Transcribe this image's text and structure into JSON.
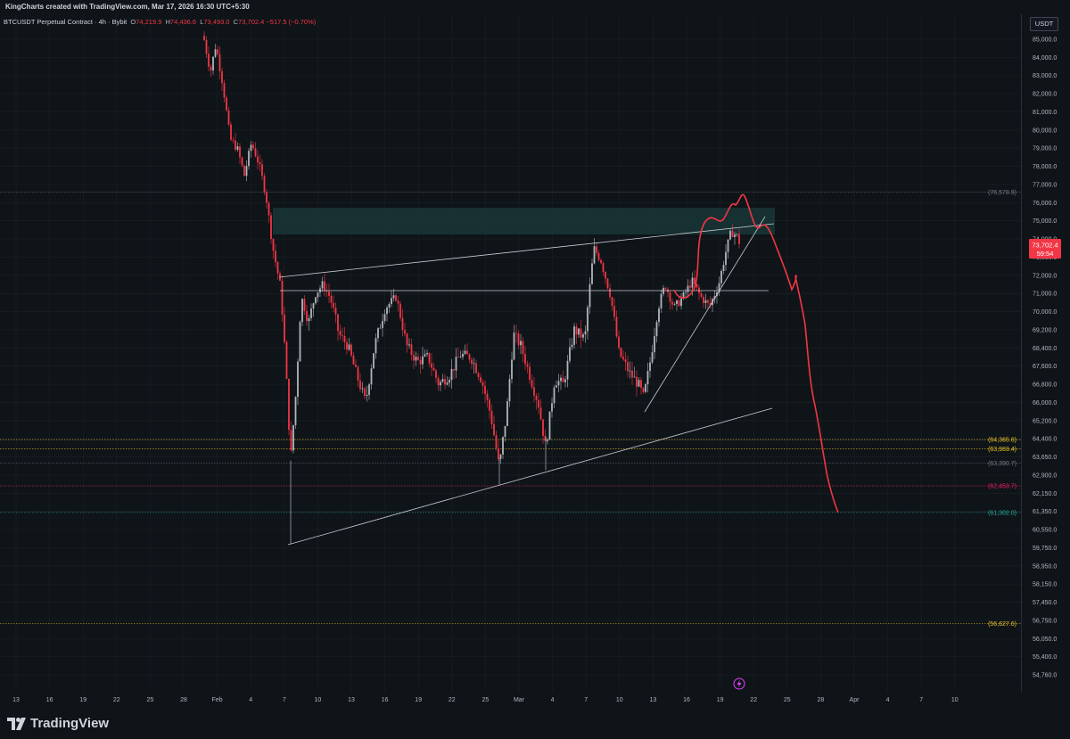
{
  "header": {
    "credit": "KingCharts created with TradingView.com, Mar 17, 2026 16:30 UTC+5:30"
  },
  "legend": {
    "symbol": "BTCUSDT Perpetual Contract · 4h · Bybit",
    "o_label": "O",
    "o": "74,219.9",
    "h_label": "H",
    "h": "74,436.6",
    "l_label": "L",
    "l": "73,493.0",
    "c_label": "C",
    "c": "73,702.4",
    "change": "−517.5 (−0.70%)"
  },
  "currency": "USDT",
  "price_axis": {
    "ticks": [
      "85,000.0",
      "84,000.0",
      "83,000.0",
      "82,000.0",
      "81,000.0",
      "80,000.0",
      "79,000.0",
      "78,000.0",
      "77,000.0",
      "76,000.0",
      "75,000.0",
      "74,000.0",
      "73,000.0",
      "72,000.0",
      "71,000.0",
      "70,000.0",
      "69,200.0",
      "68,400.0",
      "67,600.0",
      "66,800.0",
      "66,000.0",
      "65,200.0",
      "64,400.0",
      "63,650.0",
      "62,900.0",
      "62,150.0",
      "61,350.0",
      "60,550.0",
      "59,750.0",
      "58,950.0",
      "58,150.0",
      "57,450.0",
      "56,750.0",
      "56,050.0",
      "55,400.0",
      "54,760.0"
    ],
    "current_price": "73,702.4",
    "countdown": "59:54"
  },
  "levels": [
    {
      "value": "(76,578.9)",
      "color": "#787b86"
    },
    {
      "value": "(64,365.6)",
      "color": "#e6c228"
    },
    {
      "value": "(63,983.4)",
      "color": "#e6c228"
    },
    {
      "value": "(63,390.7)",
      "color": "#787b86"
    },
    {
      "value": "(62,453.7)",
      "color": "#e91e63"
    },
    {
      "value": "(61,302.0)",
      "color": "#26a69a"
    },
    {
      "value": "(56,627.6)",
      "color": "#e6c228"
    }
  ],
  "time_axis": [
    "13",
    "16",
    "19",
    "22",
    "25",
    "28",
    "Feb",
    "4",
    "7",
    "10",
    "13",
    "16",
    "19",
    "22",
    "25",
    "Mar",
    "4",
    "7",
    "10",
    "13",
    "16",
    "19",
    "22",
    "25",
    "28",
    "Apr",
    "4",
    "7",
    "10"
  ],
  "brand": {
    "name": "TradingView"
  },
  "colors": {
    "up": "#b2b5be",
    "down": "#f23645",
    "projection": "#f23645",
    "zone": "#1b3a3a",
    "background": "#0f1418"
  }
}
